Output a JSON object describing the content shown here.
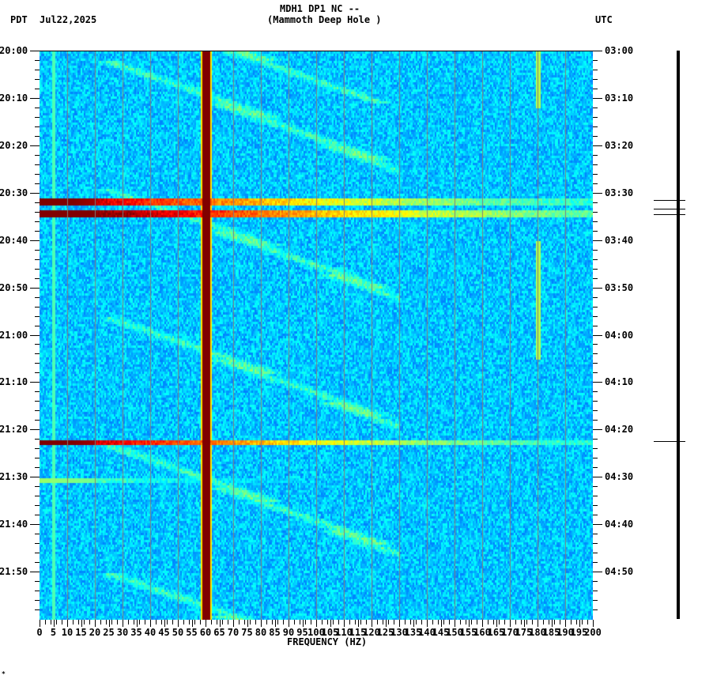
{
  "header": {
    "station": "MDH1 DP1 NC --",
    "location": "(Mammoth Deep Hole )",
    "left_tz": "PDT",
    "date": "Jul22,2025",
    "right_tz": "UTC"
  },
  "footer_mark": "*",
  "colors": {
    "background": "#1f6fe8",
    "grid": "#808080",
    "low": "#1060f0",
    "mid": "#00e0f0",
    "high": "#f0f000",
    "max": "#800000"
  },
  "chart_data": {
    "type": "heatmap",
    "title": "MDH1 DP1 NC -- (Mammoth Deep Hole ) Jul22,2025",
    "xlabel": "FREQUENCY (HZ)",
    "ylabel_left": "PDT",
    "ylabel_right": "UTC",
    "xlim": [
      0,
      200
    ],
    "x_ticks": [
      0,
      5,
      10,
      15,
      20,
      25,
      30,
      35,
      40,
      45,
      50,
      55,
      60,
      65,
      70,
      75,
      80,
      85,
      90,
      95,
      100,
      105,
      110,
      115,
      120,
      125,
      130,
      135,
      140,
      145,
      150,
      155,
      160,
      165,
      170,
      175,
      180,
      185,
      190,
      195,
      200
    ],
    "y_ticks_left": [
      "20:00",
      "20:10",
      "20:20",
      "20:30",
      "20:40",
      "20:50",
      "21:00",
      "21:10",
      "21:20",
      "21:30",
      "21:40",
      "21:50"
    ],
    "y_ticks_right": [
      "03:00",
      "03:10",
      "03:20",
      "03:30",
      "03:40",
      "03:50",
      "04:00",
      "04:10",
      "04:20",
      "04:30",
      "04:40",
      "04:50"
    ],
    "time_span_minutes": 120,
    "persistent_lines_hz": [
      {
        "freq": 60,
        "intensity": "max",
        "note": "power line"
      },
      {
        "freq": 5,
        "intensity": "mid"
      },
      {
        "freq": 180,
        "intensity": "high",
        "note": "intermittent"
      }
    ],
    "broadband_events": [
      {
        "minute": 31.5,
        "width_min": 0.8,
        "strength": 1.0
      },
      {
        "minute": 34.0,
        "width_min": 1.5,
        "strength": 1.1
      },
      {
        "minute": 82.5,
        "width_min": 0.8,
        "strength": 1.0
      },
      {
        "minute": 90.5,
        "width_min": 0.5,
        "strength": 0.5
      }
    ],
    "trace_events_minutes": [
      31.5,
      33.4,
      34.5,
      82.5
    ]
  }
}
